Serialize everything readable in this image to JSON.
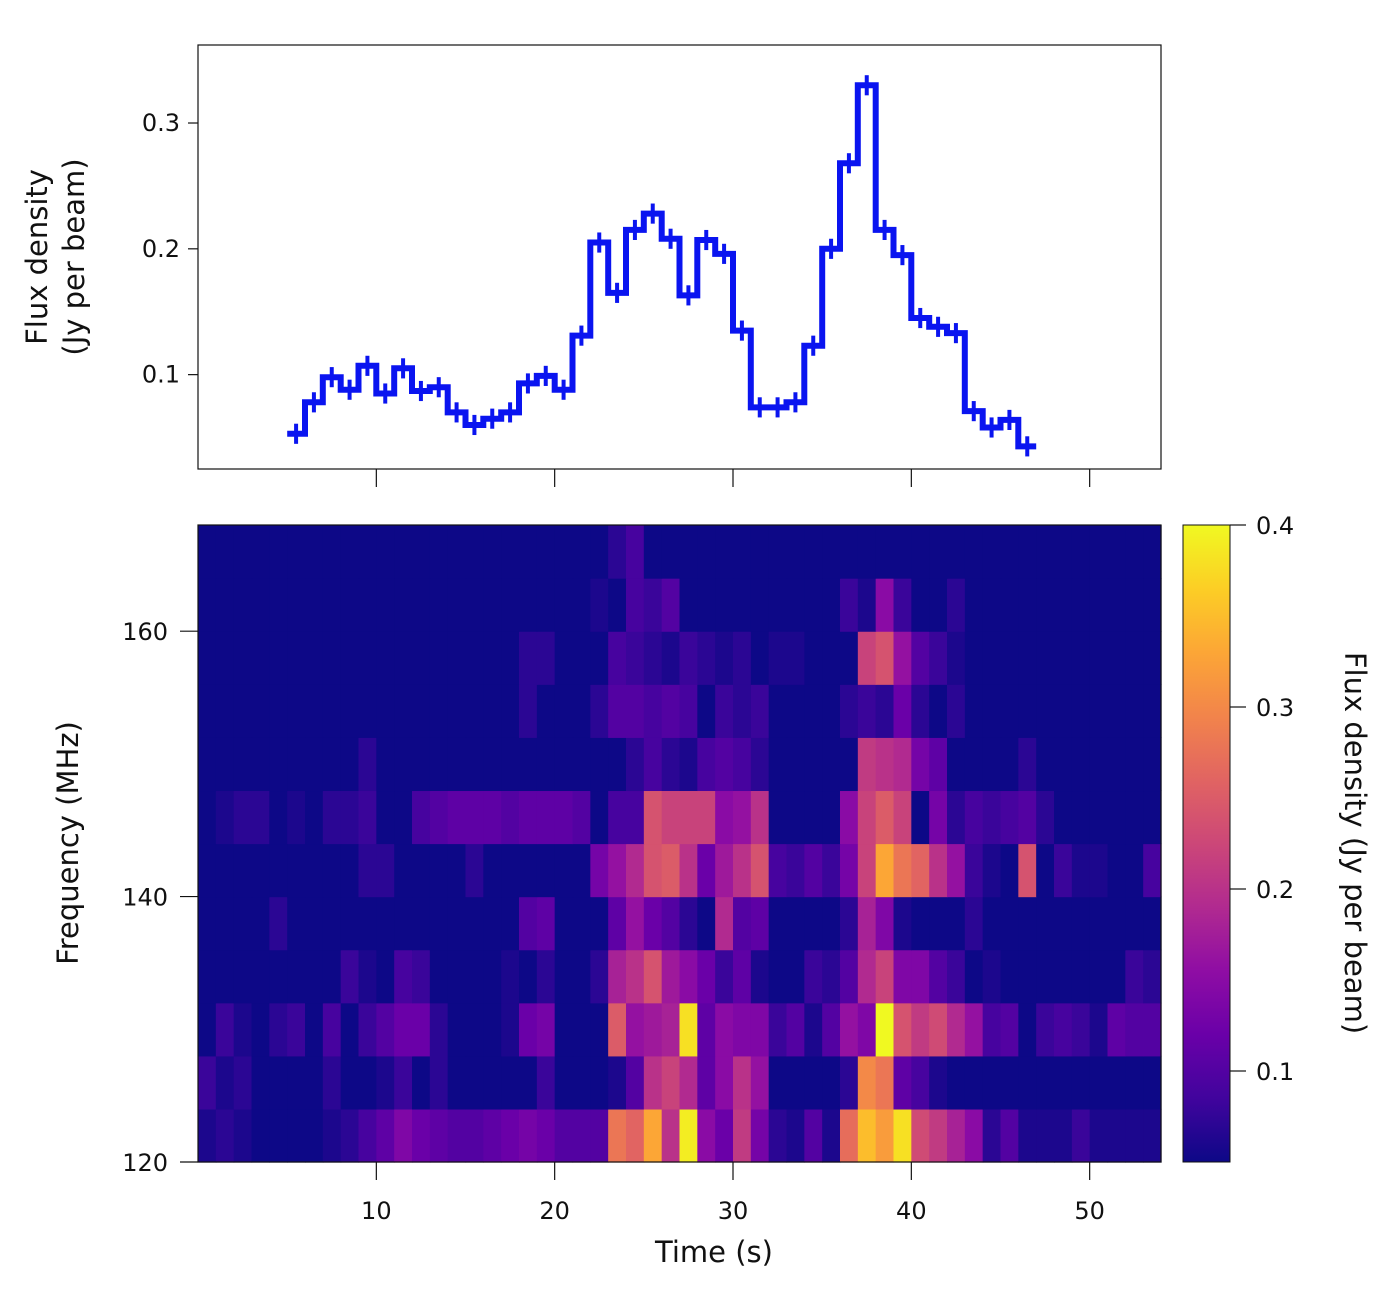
{
  "chart_data": [
    {
      "type": "line",
      "style": "step with error bars",
      "color": "#0a14f0",
      "ylabel_line1": "Flux density",
      "ylabel_line2": "(Jy per beam)",
      "xlim": [
        0,
        54
      ],
      "ylim": [
        0.025,
        0.362
      ],
      "yticks": [
        0.1,
        0.2,
        0.3
      ],
      "ytick_labels": [
        "0.1",
        "0.2",
        "0.3"
      ],
      "xticks": [
        10,
        20,
        30,
        40,
        50
      ],
      "bin_width_s": 1,
      "x": [
        5.5,
        6.5,
        7.5,
        8.5,
        9.5,
        10.5,
        11.5,
        12.5,
        13.5,
        14.5,
        15.5,
        16.5,
        17.5,
        18.5,
        19.5,
        20.5,
        21.5,
        22.5,
        23.5,
        24.5,
        25.5,
        26.5,
        27.5,
        28.5,
        29.5,
        30.5,
        31.5,
        32.5,
        33.5,
        34.5,
        35.5,
        36.5,
        37.5,
        38.5,
        39.5,
        40.5,
        41.5,
        42.5,
        43.5,
        44.5,
        45.5,
        46.5
      ],
      "y": [
        0.053,
        0.078,
        0.098,
        0.088,
        0.107,
        0.085,
        0.105,
        0.087,
        0.09,
        0.07,
        0.06,
        0.065,
        0.07,
        0.093,
        0.099,
        0.088,
        0.131,
        0.205,
        0.165,
        0.215,
        0.228,
        0.208,
        0.163,
        0.207,
        0.196,
        0.135,
        0.074,
        0.074,
        0.078,
        0.123,
        0.2,
        0.268,
        0.33,
        0.215,
        0.195,
        0.145,
        0.138,
        0.133,
        0.071,
        0.058,
        0.064,
        0.043
      ],
      "yerr": 0.008
    },
    {
      "type": "heatmap",
      "xlabel": "Time (s)",
      "ylabel": "Frequency (MHz)",
      "xlim": [
        0,
        54
      ],
      "ylim": [
        120,
        168
      ],
      "xticks": [
        10,
        20,
        30,
        40,
        50
      ],
      "xtick_labels": [
        "10",
        "20",
        "30",
        "40",
        "50"
      ],
      "yticks": [
        120,
        140,
        160
      ],
      "ytick_labels": [
        "120",
        "140",
        "160"
      ],
      "time_bin_s": 1,
      "freq_bin_MHz": 4,
      "colormap": "plasma",
      "colorbar": {
        "label": "Flux density (Jy per beam)",
        "range": [
          0.05,
          0.4
        ],
        "ticks": [
          0.1,
          0.2,
          0.3,
          0.4
        ],
        "tick_labels": [
          "0.1",
          "0.2",
          "0.3",
          "0.4"
        ]
      },
      "freq_bin_centers_MHz": [
        122,
        126,
        130,
        134,
        138,
        142,
        146,
        150,
        154,
        158,
        162,
        166
      ],
      "z": [
        [
          0.06,
          0.07,
          0.06,
          0.05,
          0.05,
          0.05,
          0.05,
          0.06,
          0.07,
          0.09,
          0.11,
          0.14,
          0.12,
          0.11,
          0.1,
          0.1,
          0.11,
          0.12,
          0.13,
          0.12,
          0.1,
          0.1,
          0.1,
          0.28,
          0.26,
          0.33,
          0.2,
          0.39,
          0.15,
          0.12,
          0.21,
          0.13,
          0.07,
          0.06,
          0.1,
          0.06,
          0.27,
          0.35,
          0.32,
          0.38,
          0.23,
          0.21,
          0.18,
          0.15,
          0.07,
          0.1,
          0.06,
          0.06,
          0.06,
          0.08,
          0.06,
          0.06,
          0.06,
          0.06
        ],
        [
          0.08,
          0.06,
          0.07,
          0.05,
          0.05,
          0.05,
          0.05,
          0.07,
          0.05,
          0.05,
          0.06,
          0.08,
          0.05,
          0.07,
          0.05,
          0.05,
          0.05,
          0.05,
          0.05,
          0.08,
          0.05,
          0.05,
          0.05,
          0.06,
          0.1,
          0.2,
          0.22,
          0.19,
          0.11,
          0.15,
          0.2,
          0.16,
          0.05,
          0.05,
          0.05,
          0.05,
          0.07,
          0.3,
          0.28,
          0.11,
          0.09,
          0.06,
          0.05,
          0.05,
          0.05,
          0.05,
          0.05,
          0.05,
          0.05,
          0.05,
          0.05,
          0.05,
          0.05,
          0.05
        ],
        [
          0.05,
          0.08,
          0.06,
          0.05,
          0.07,
          0.08,
          0.05,
          0.09,
          0.05,
          0.08,
          0.1,
          0.12,
          0.12,
          0.07,
          0.05,
          0.05,
          0.05,
          0.06,
          0.12,
          0.13,
          0.05,
          0.05,
          0.05,
          0.25,
          0.16,
          0.17,
          0.18,
          0.38,
          0.11,
          0.15,
          0.14,
          0.14,
          0.08,
          0.1,
          0.06,
          0.1,
          0.16,
          0.14,
          0.4,
          0.24,
          0.21,
          0.23,
          0.19,
          0.16,
          0.09,
          0.1,
          0.05,
          0.08,
          0.09,
          0.08,
          0.06,
          0.11,
          0.1,
          0.1
        ],
        [
          0.05,
          0.05,
          0.05,
          0.05,
          0.05,
          0.05,
          0.05,
          0.05,
          0.08,
          0.06,
          0.05,
          0.09,
          0.08,
          0.05,
          0.05,
          0.05,
          0.05,
          0.06,
          0.05,
          0.07,
          0.05,
          0.05,
          0.07,
          0.18,
          0.2,
          0.24,
          0.17,
          0.15,
          0.12,
          0.08,
          0.11,
          0.06,
          0.05,
          0.05,
          0.08,
          0.07,
          0.1,
          0.19,
          0.22,
          0.14,
          0.14,
          0.1,
          0.08,
          0.05,
          0.06,
          0.05,
          0.05,
          0.05,
          0.05,
          0.05,
          0.05,
          0.05,
          0.08,
          0.07
        ],
        [
          0.05,
          0.05,
          0.05,
          0.05,
          0.07,
          0.05,
          0.05,
          0.05,
          0.05,
          0.05,
          0.05,
          0.05,
          0.05,
          0.05,
          0.05,
          0.05,
          0.05,
          0.05,
          0.1,
          0.11,
          0.05,
          0.05,
          0.05,
          0.11,
          0.16,
          0.12,
          0.1,
          0.07,
          0.05,
          0.19,
          0.1,
          0.11,
          0.05,
          0.05,
          0.05,
          0.05,
          0.07,
          0.18,
          0.14,
          0.06,
          0.05,
          0.05,
          0.05,
          0.07,
          0.05,
          0.05,
          0.05,
          0.05,
          0.05,
          0.05,
          0.05,
          0.05,
          0.05,
          0.05
        ],
        [
          0.05,
          0.05,
          0.05,
          0.05,
          0.05,
          0.05,
          0.05,
          0.05,
          0.05,
          0.07,
          0.07,
          0.05,
          0.05,
          0.05,
          0.05,
          0.07,
          0.05,
          0.05,
          0.05,
          0.05,
          0.05,
          0.05,
          0.13,
          0.16,
          0.19,
          0.24,
          0.25,
          0.2,
          0.12,
          0.17,
          0.2,
          0.24,
          0.09,
          0.08,
          0.1,
          0.08,
          0.13,
          0.22,
          0.33,
          0.28,
          0.26,
          0.2,
          0.16,
          0.08,
          0.06,
          0.05,
          0.24,
          0.05,
          0.08,
          0.06,
          0.06,
          0.05,
          0.05,
          0.09
        ],
        [
          0.05,
          0.06,
          0.07,
          0.07,
          0.05,
          0.06,
          0.05,
          0.07,
          0.07,
          0.08,
          0.05,
          0.05,
          0.09,
          0.1,
          0.11,
          0.11,
          0.11,
          0.1,
          0.11,
          0.11,
          0.11,
          0.1,
          0.05,
          0.09,
          0.09,
          0.24,
          0.22,
          0.22,
          0.22,
          0.15,
          0.16,
          0.2,
          0.05,
          0.05,
          0.05,
          0.05,
          0.15,
          0.22,
          0.25,
          0.22,
          0.05,
          0.13,
          0.07,
          0.09,
          0.08,
          0.09,
          0.1,
          0.07,
          0.05,
          0.05,
          0.05,
          0.05,
          0.05,
          0.05
        ],
        [
          0.05,
          0.05,
          0.05,
          0.05,
          0.05,
          0.05,
          0.05,
          0.05,
          0.05,
          0.07,
          0.05,
          0.05,
          0.05,
          0.05,
          0.05,
          0.05,
          0.05,
          0.05,
          0.05,
          0.05,
          0.05,
          0.05,
          0.05,
          0.05,
          0.07,
          0.09,
          0.07,
          0.06,
          0.09,
          0.1,
          0.09,
          0.07,
          0.05,
          0.05,
          0.05,
          0.05,
          0.05,
          0.21,
          0.2,
          0.19,
          0.13,
          0.11,
          0.05,
          0.05,
          0.05,
          0.05,
          0.07,
          0.05,
          0.05,
          0.05,
          0.05,
          0.05,
          0.05,
          0.05
        ],
        [
          0.05,
          0.05,
          0.05,
          0.05,
          0.05,
          0.05,
          0.05,
          0.05,
          0.05,
          0.05,
          0.05,
          0.05,
          0.05,
          0.05,
          0.05,
          0.05,
          0.05,
          0.05,
          0.07,
          0.05,
          0.05,
          0.05,
          0.07,
          0.1,
          0.1,
          0.09,
          0.1,
          0.09,
          0.05,
          0.08,
          0.07,
          0.08,
          0.05,
          0.05,
          0.05,
          0.05,
          0.07,
          0.08,
          0.07,
          0.12,
          0.07,
          0.05,
          0.07,
          0.05,
          0.05,
          0.05,
          0.05,
          0.05,
          0.05,
          0.05,
          0.05,
          0.05,
          0.05,
          0.05
        ],
        [
          0.05,
          0.05,
          0.05,
          0.05,
          0.05,
          0.05,
          0.05,
          0.05,
          0.05,
          0.05,
          0.05,
          0.05,
          0.05,
          0.05,
          0.05,
          0.05,
          0.05,
          0.05,
          0.07,
          0.07,
          0.05,
          0.05,
          0.05,
          0.09,
          0.08,
          0.07,
          0.06,
          0.08,
          0.07,
          0.06,
          0.07,
          0.05,
          0.06,
          0.06,
          0.05,
          0.05,
          0.05,
          0.22,
          0.24,
          0.16,
          0.1,
          0.08,
          0.06,
          0.05,
          0.05,
          0.05,
          0.05,
          0.05,
          0.05,
          0.05,
          0.05,
          0.05,
          0.05,
          0.05
        ],
        [
          0.05,
          0.05,
          0.05,
          0.05,
          0.05,
          0.05,
          0.05,
          0.05,
          0.05,
          0.05,
          0.05,
          0.05,
          0.05,
          0.05,
          0.05,
          0.05,
          0.05,
          0.05,
          0.05,
          0.05,
          0.05,
          0.05,
          0.06,
          0.05,
          0.09,
          0.08,
          0.1,
          0.05,
          0.05,
          0.05,
          0.05,
          0.05,
          0.05,
          0.05,
          0.05,
          0.05,
          0.08,
          0.06,
          0.15,
          0.08,
          0.05,
          0.05,
          0.07,
          0.05,
          0.05,
          0.05,
          0.05,
          0.05,
          0.05,
          0.05,
          0.05,
          0.05,
          0.05,
          0.05
        ],
        [
          0.05,
          0.05,
          0.05,
          0.05,
          0.05,
          0.05,
          0.05,
          0.05,
          0.05,
          0.05,
          0.05,
          0.05,
          0.05,
          0.05,
          0.05,
          0.05,
          0.05,
          0.05,
          0.05,
          0.05,
          0.05,
          0.05,
          0.05,
          0.07,
          0.09,
          0.05,
          0.05,
          0.05,
          0.05,
          0.05,
          0.05,
          0.05,
          0.05,
          0.05,
          0.05,
          0.05,
          0.05,
          0.05,
          0.05,
          0.05,
          0.05,
          0.05,
          0.05,
          0.05,
          0.05,
          0.05,
          0.05,
          0.05,
          0.05,
          0.05,
          0.05,
          0.05,
          0.05,
          0.05
        ]
      ]
    }
  ]
}
